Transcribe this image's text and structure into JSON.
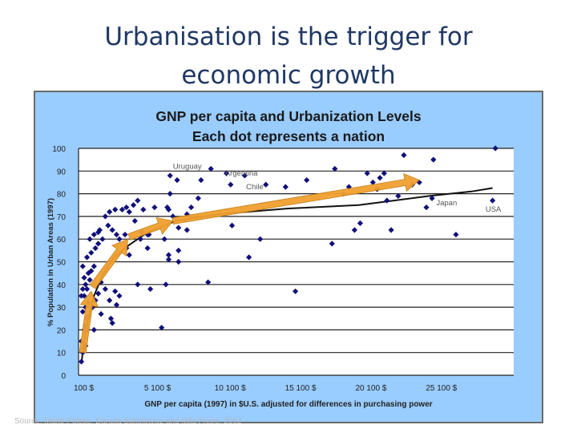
{
  "slide": {
    "title": "Urbanisation is the trigger for economic growth"
  },
  "source_text": "Source: Mario Polese, Danuta Sokolowicz and Mila Freire, 2002",
  "chart_data": {
    "type": "scatter",
    "title": "GNP per capita and Urbanization Levels",
    "subtitle": "Each dot represents a nation",
    "xlabel": "GNP per capita (1997) in $U.S. adjusted for differences in purchasing power",
    "ylabel": "% Population in Urban Areas (1997)",
    "xlim": [
      100,
      31000
    ],
    "ylim": [
      0,
      100
    ],
    "x_ticks": [
      100,
      5100,
      10100,
      15100,
      20100,
      25100
    ],
    "x_tick_labels": [
      "100   $",
      "5 100   $",
      "10 100   $",
      "15 100   $",
      "20 100   $",
      "25 100   $"
    ],
    "y_ticks": [
      0,
      10,
      20,
      30,
      40,
      50,
      60,
      70,
      80,
      90,
      100
    ],
    "grid": "horizontal",
    "colors": {
      "points": "#10107a",
      "trend": "#111111",
      "arrows": "#f0a030",
      "arrow_stroke": "#c07a10"
    },
    "points": [
      [
        300,
        6
      ],
      [
        400,
        10
      ],
      [
        500,
        12
      ],
      [
        600,
        13
      ],
      [
        300,
        15
      ],
      [
        500,
        20
      ],
      [
        700,
        25
      ],
      [
        400,
        28
      ],
      [
        600,
        30
      ],
      [
        800,
        32
      ],
      [
        300,
        35
      ],
      [
        500,
        35
      ],
      [
        400,
        38
      ],
      [
        700,
        38
      ],
      [
        600,
        40
      ],
      [
        900,
        42
      ],
      [
        500,
        43
      ],
      [
        800,
        45
      ],
      [
        1000,
        46
      ],
      [
        1200,
        48
      ],
      [
        400,
        48
      ],
      [
        700,
        52
      ],
      [
        1000,
        54
      ],
      [
        1300,
        56
      ],
      [
        1500,
        58
      ],
      [
        900,
        60
      ],
      [
        1200,
        62
      ],
      [
        1500,
        63
      ],
      [
        1800,
        60
      ],
      [
        1600,
        64
      ],
      [
        2000,
        70
      ],
      [
        2300,
        72
      ],
      [
        2700,
        73
      ],
      [
        3200,
        73
      ],
      [
        3500,
        74
      ],
      [
        3700,
        72
      ],
      [
        4000,
        75
      ],
      [
        4300,
        77
      ],
      [
        4100,
        68
      ],
      [
        4600,
        63
      ],
      [
        3700,
        53
      ],
      [
        3500,
        56
      ],
      [
        2200,
        66
      ],
      [
        2500,
        64
      ],
      [
        2800,
        62
      ],
      [
        3000,
        60
      ],
      [
        3400,
        62
      ],
      [
        4500,
        60
      ],
      [
        5000,
        56
      ],
      [
        5000,
        62
      ],
      [
        4700,
        73
      ],
      [
        5500,
        74
      ],
      [
        5200,
        38
      ],
      [
        4300,
        40
      ],
      [
        2700,
        37
      ],
      [
        3000,
        35
      ],
      [
        2300,
        33
      ],
      [
        2800,
        31
      ],
      [
        2000,
        38
      ],
      [
        1500,
        36
      ],
      [
        1700,
        27
      ],
      [
        2400,
        25
      ],
      [
        2500,
        23
      ],
      [
        1200,
        20
      ],
      [
        700,
        20
      ],
      [
        600,
        22
      ],
      [
        800,
        26
      ],
      [
        1100,
        30
      ],
      [
        1300,
        33
      ],
      [
        1700,
        41
      ],
      [
        5100,
        62
      ],
      [
        6200,
        60
      ],
      [
        6500,
        51
      ],
      [
        6500,
        53
      ],
      [
        7200,
        50
      ],
      [
        6000,
        21
      ],
      [
        6300,
        40
      ],
      [
        7200,
        55
      ],
      [
        7800,
        64
      ],
      [
        7200,
        65
      ],
      [
        6800,
        70
      ],
      [
        6500,
        73
      ],
      [
        6400,
        74
      ],
      [
        6600,
        80
      ],
      [
        7100,
        86
      ],
      [
        6600,
        88
      ],
      [
        7800,
        71
      ],
      [
        8100,
        74
      ],
      [
        8600,
        78
      ],
      [
        8800,
        86
      ],
      [
        9500,
        91
      ],
      [
        10600,
        89
      ],
      [
        10900,
        84
      ],
      [
        9300,
        41
      ],
      [
        11000,
        66
      ],
      [
        11900,
        88
      ],
      [
        12200,
        52
      ],
      [
        13000,
        60
      ],
      [
        13400,
        84
      ],
      [
        14800,
        83
      ],
      [
        15500,
        37
      ],
      [
        16300,
        86
      ],
      [
        18100,
        58
      ],
      [
        18300,
        91
      ],
      [
        18900,
        80
      ],
      [
        19300,
        83
      ],
      [
        19700,
        64
      ],
      [
        20100,
        67
      ],
      [
        20600,
        89
      ],
      [
        21000,
        85
      ],
      [
        21300,
        82
      ],
      [
        21500,
        87
      ],
      [
        21800,
        89
      ],
      [
        22000,
        77
      ],
      [
        22300,
        64
      ],
      [
        22800,
        79
      ],
      [
        23200,
        97
      ],
      [
        23800,
        84
      ],
      [
        24300,
        85
      ],
      [
        24800,
        74
      ],
      [
        25200,
        78
      ],
      [
        25300,
        95
      ],
      [
        26900,
        62
      ],
      [
        29500,
        77
      ],
      [
        29700,
        100
      ]
    ],
    "trend_line": [
      [
        300,
        5
      ],
      [
        500,
        15
      ],
      [
        800,
        25
      ],
      [
        1200,
        35
      ],
      [
        1800,
        44
      ],
      [
        2600,
        52
      ],
      [
        3600,
        57
      ],
      [
        5000,
        63
      ],
      [
        7000,
        68
      ],
      [
        10000,
        71
      ],
      [
        15000,
        73.5
      ],
      [
        20000,
        75
      ],
      [
        25000,
        79
      ],
      [
        28000,
        81
      ],
      [
        29500,
        82.5
      ]
    ],
    "arrows": [
      {
        "from": [
          400,
          10
        ],
        "to": [
          1000,
          37
        ]
      },
      {
        "from": [
          1100,
          39
        ],
        "to": [
          3600,
          60
        ]
      },
      {
        "from": [
          3700,
          61
        ],
        "to": [
          6800,
          68
        ]
      },
      {
        "from": [
          6800,
          68
        ],
        "to": [
          24300,
          86
        ]
      }
    ],
    "annotations": [
      {
        "text": "Uruguay",
        "x": 6800,
        "y": 91
      },
      {
        "text": "Argentina",
        "x": 10500,
        "y": 88
      },
      {
        "text": "Chile",
        "x": 12000,
        "y": 82
      },
      {
        "text": "Japan",
        "x": 25500,
        "y": 75
      },
      {
        "text": "USA",
        "x": 29000,
        "y": 72
      }
    ]
  }
}
